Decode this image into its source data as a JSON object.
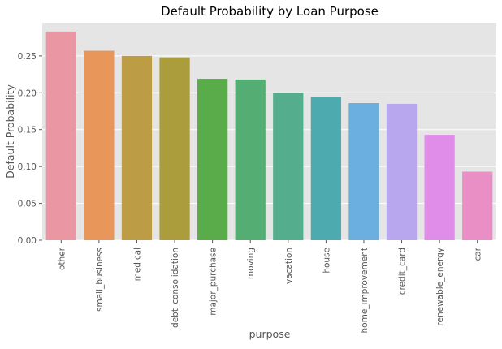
{
  "chart_data": {
    "type": "bar",
    "title": "Default Probability by Loan Purpose",
    "xlabel": "purpose",
    "ylabel": "Default Probability",
    "ylim": [
      0,
      0.295
    ],
    "yticks": [
      0.0,
      0.05,
      0.1,
      0.15,
      0.2,
      0.25
    ],
    "grid": true,
    "legend": "none",
    "categories": [
      "other",
      "small_business",
      "medical",
      "debt_consolidation",
      "major_purchase",
      "moving",
      "vacation",
      "house",
      "home_improvement",
      "credit_card",
      "renewable_energy",
      "car"
    ],
    "values": [
      0.283,
      0.257,
      0.25,
      0.248,
      0.219,
      0.218,
      0.2,
      0.194,
      0.186,
      0.185,
      0.143,
      0.093
    ],
    "colors": [
      "#ea96a3",
      "#e8965a",
      "#bc9c44",
      "#ac9d3c",
      "#5aab4a",
      "#54ae73",
      "#54ae8d",
      "#4dabaf",
      "#6aafe0",
      "#b8a6ee",
      "#e08de9",
      "#ea8fc6"
    ],
    "background": "#e5e5e5",
    "grid_color": "#ffffff"
  }
}
